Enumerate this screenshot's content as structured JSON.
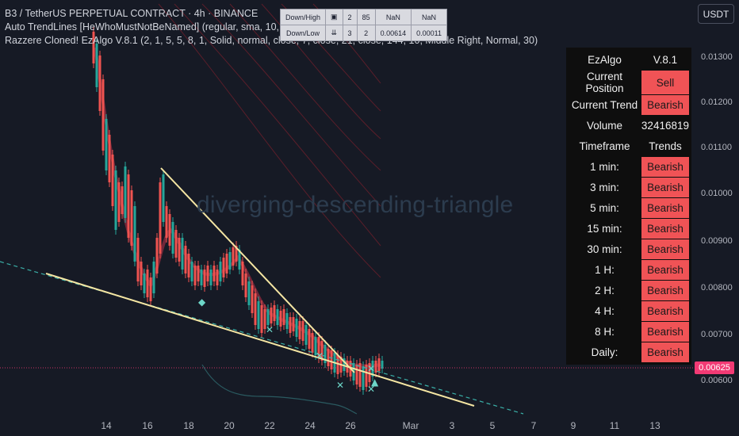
{
  "legend": {
    "line1": "B3 / TetherUS PERPETUAL CONTRACT · 4h · BINANCE",
    "line2": "Auto TrendLines [HeWhoMustNotBeNamed] (regular, sma, 10, 5, 34, dsh",
    "line3": "Razzere Cloned! EzAlgo V.8.1 (2, 1, 5, 5, 8, 1, Solid, normal, close, 7, close, 21, close, 144, 10, Middle Right, Normal, 30)"
  },
  "watermark": "diverging-descending-triangle",
  "mini_table": {
    "rows": [
      [
        "Down/High",
        "▣",
        "2",
        "85",
        "NaN",
        "NaN"
      ],
      [
        "Down/Low",
        "⇊",
        "3",
        "2",
        "0.00614",
        "0.00011"
      ]
    ]
  },
  "currency_button": "USDT",
  "status_panel": {
    "header": [
      "EzAlgo",
      "V.8.1"
    ],
    "rows": [
      {
        "label": "Current Position",
        "value": "Sell",
        "highlight": true
      },
      {
        "label": "Current Trend",
        "value": "Bearish",
        "highlight": true
      },
      {
        "label": "Volume",
        "value": "32416819",
        "highlight": false
      },
      {
        "label": "Timeframe",
        "value": "Trends",
        "highlight": false
      },
      {
        "label": "1 min:",
        "value": "Bearish",
        "highlight": true
      },
      {
        "label": "3 min:",
        "value": "Bearish",
        "highlight": true
      },
      {
        "label": "5 min:",
        "value": "Bearish",
        "highlight": true
      },
      {
        "label": "15 min:",
        "value": "Bearish",
        "highlight": true
      },
      {
        "label": "30 min:",
        "value": "Bearish",
        "highlight": true
      },
      {
        "label": "1 H:",
        "value": "Bearish",
        "highlight": true
      },
      {
        "label": "2 H:",
        "value": "Bearish",
        "highlight": true
      },
      {
        "label": "4 H:",
        "value": "Bearish",
        "highlight": true
      },
      {
        "label": "8 H:",
        "value": "Bearish",
        "highlight": true
      },
      {
        "label": "Daily:",
        "value": "Bearish",
        "highlight": true
      }
    ]
  },
  "price_axis": {
    "labels": [
      "0.01300",
      "0.01200",
      "0.01100",
      "0.01000",
      "0.00900",
      "0.00800",
      "0.00700",
      "0.00600"
    ],
    "current_price": "0.00625"
  },
  "time_axis": {
    "labels": [
      "14",
      "16",
      "18",
      "20",
      "22",
      "24",
      "26",
      "Mar",
      "3",
      "5",
      "7",
      "9",
      "11",
      "13"
    ]
  },
  "colors": {
    "background": "#161a25",
    "bearish": "#f05356",
    "candle_up": "#26a69a",
    "candle_down": "#ef5350",
    "trendline": "#f5e6a3",
    "price_badge": "#f23a74"
  }
}
